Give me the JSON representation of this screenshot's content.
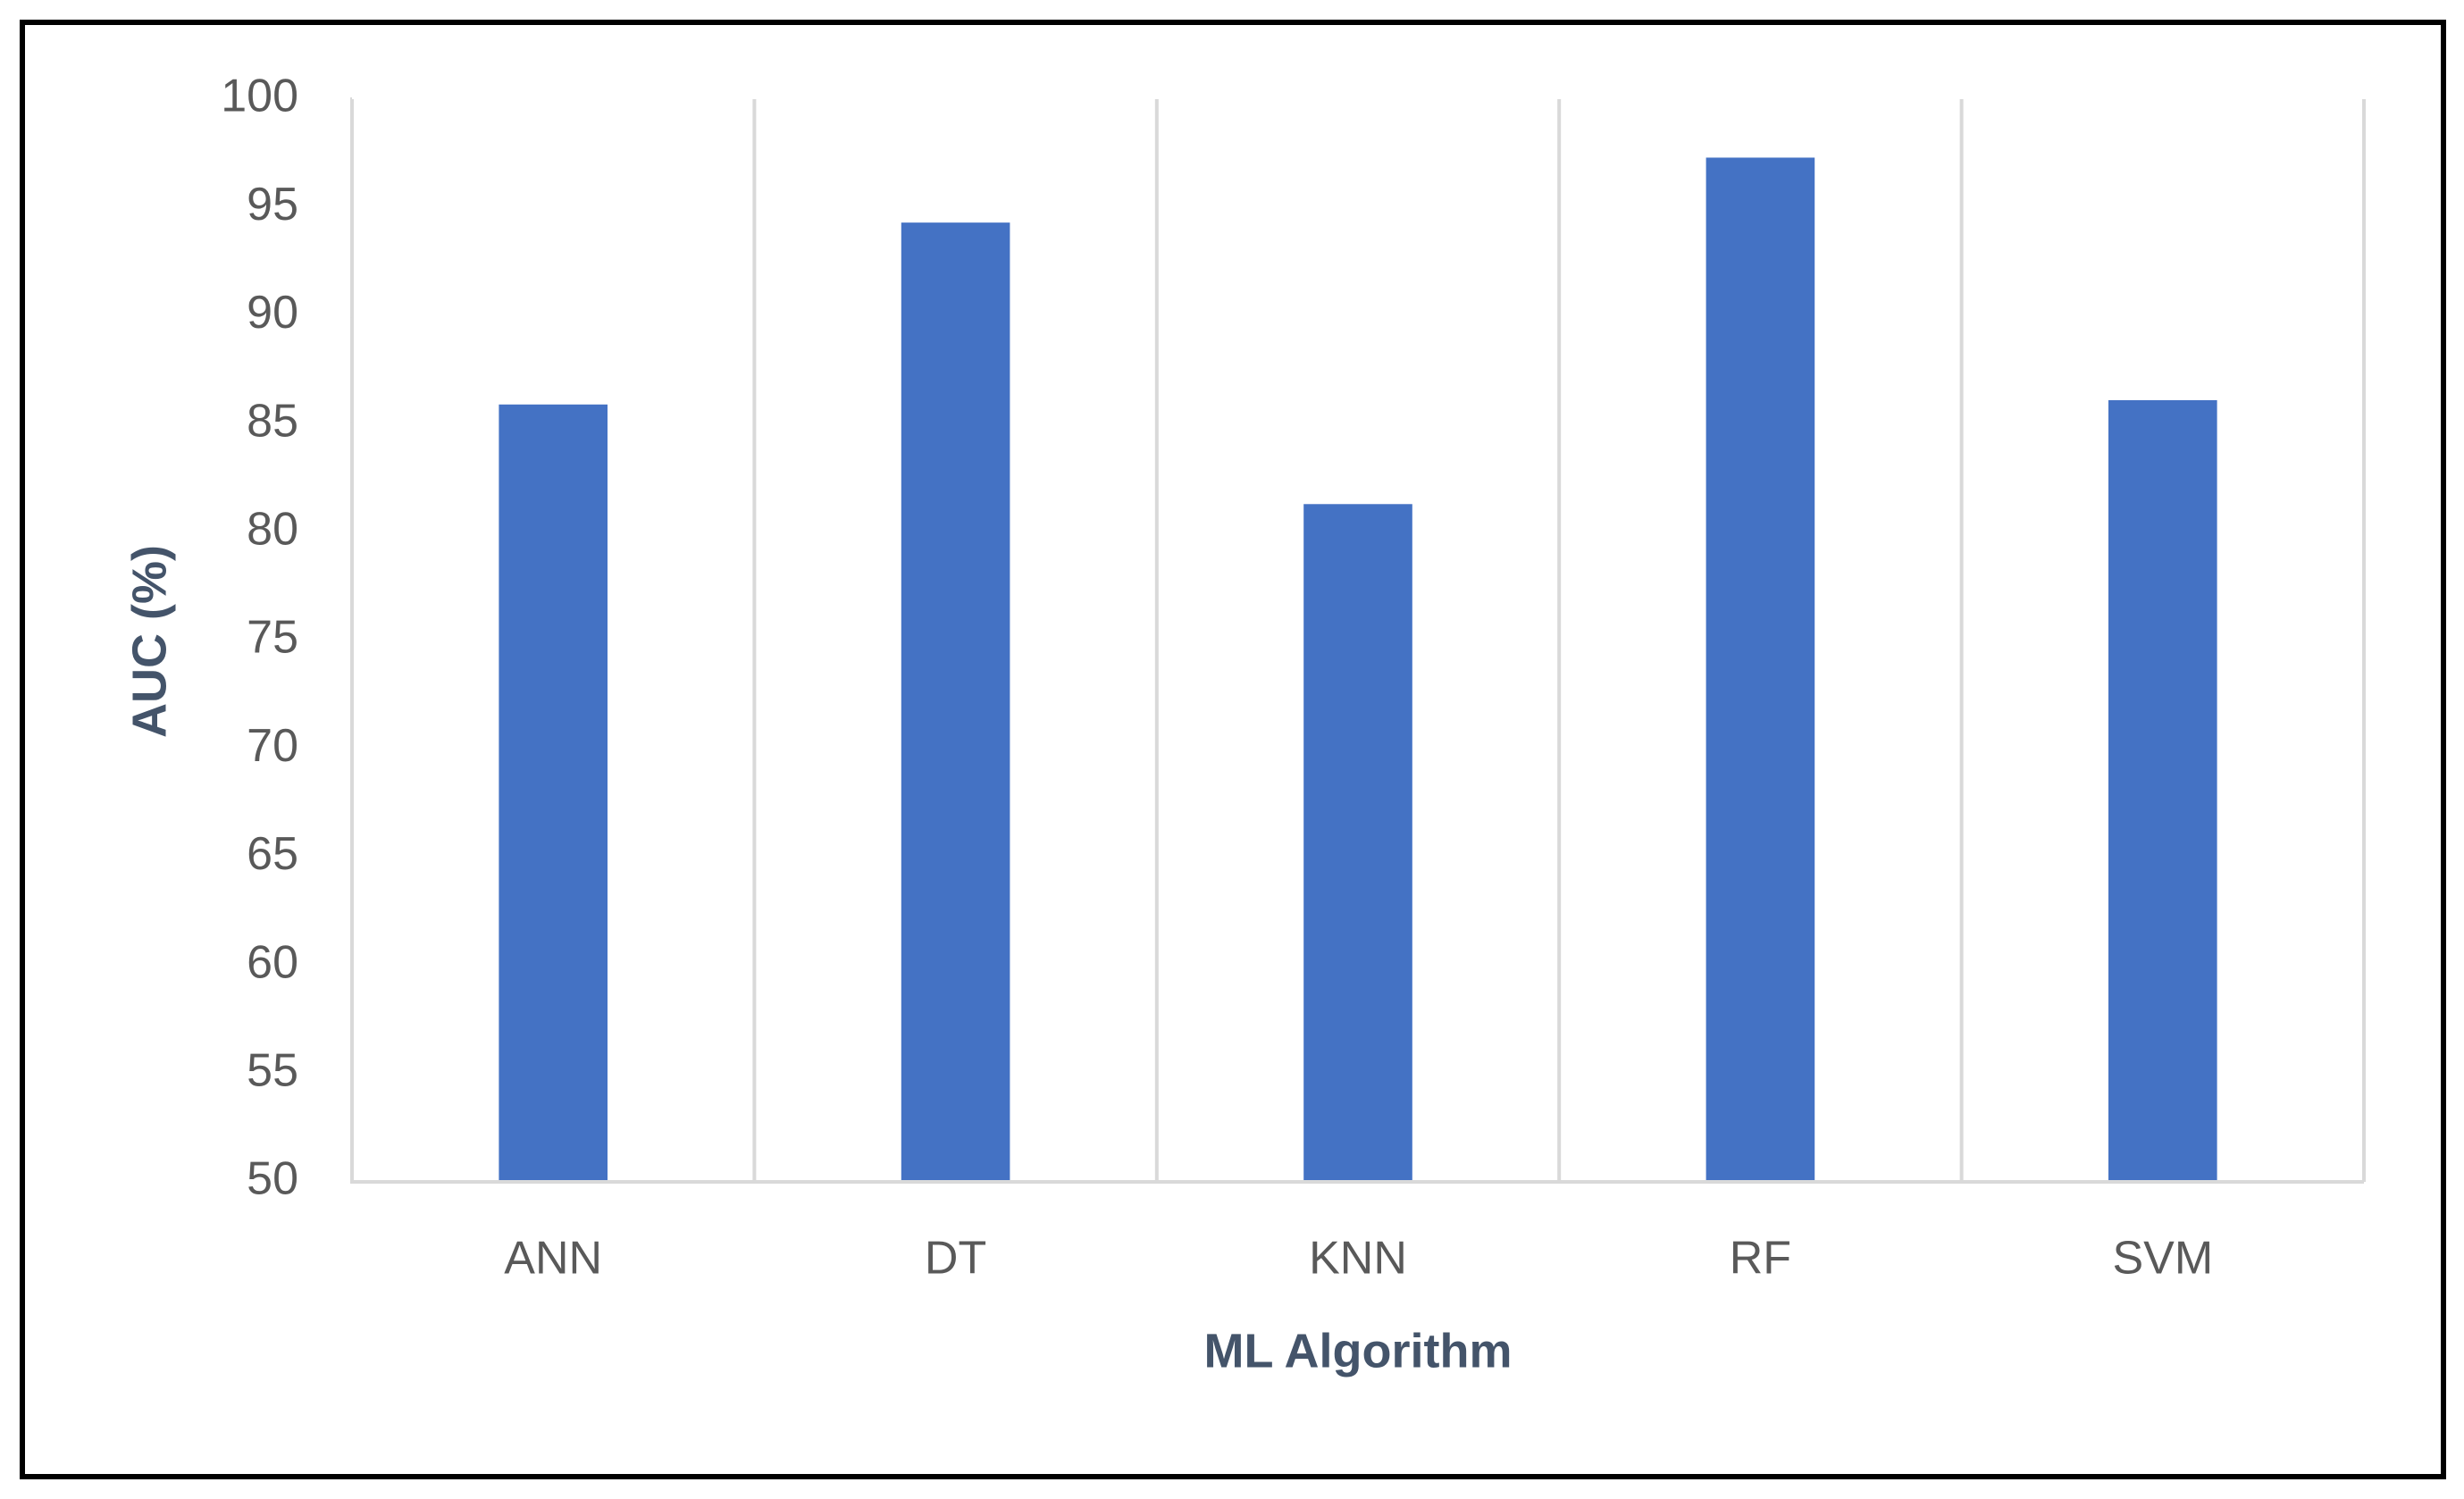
{
  "chart_data": {
    "type": "bar",
    "x_label": "ML Algorithm",
    "y_label": "AUC (%)",
    "categories": [
      "ANN",
      "DT",
      "KNN",
      "RF",
      "SVM"
    ],
    "values": [
      85.9,
      94.3,
      81.3,
      97.3,
      86.1
    ],
    "color": "#4472c4",
    "ylim": [
      50,
      100
    ],
    "yticks": [
      50,
      55,
      60,
      65,
      70,
      75,
      80,
      85,
      90,
      95,
      100
    ],
    "grid": true
  }
}
